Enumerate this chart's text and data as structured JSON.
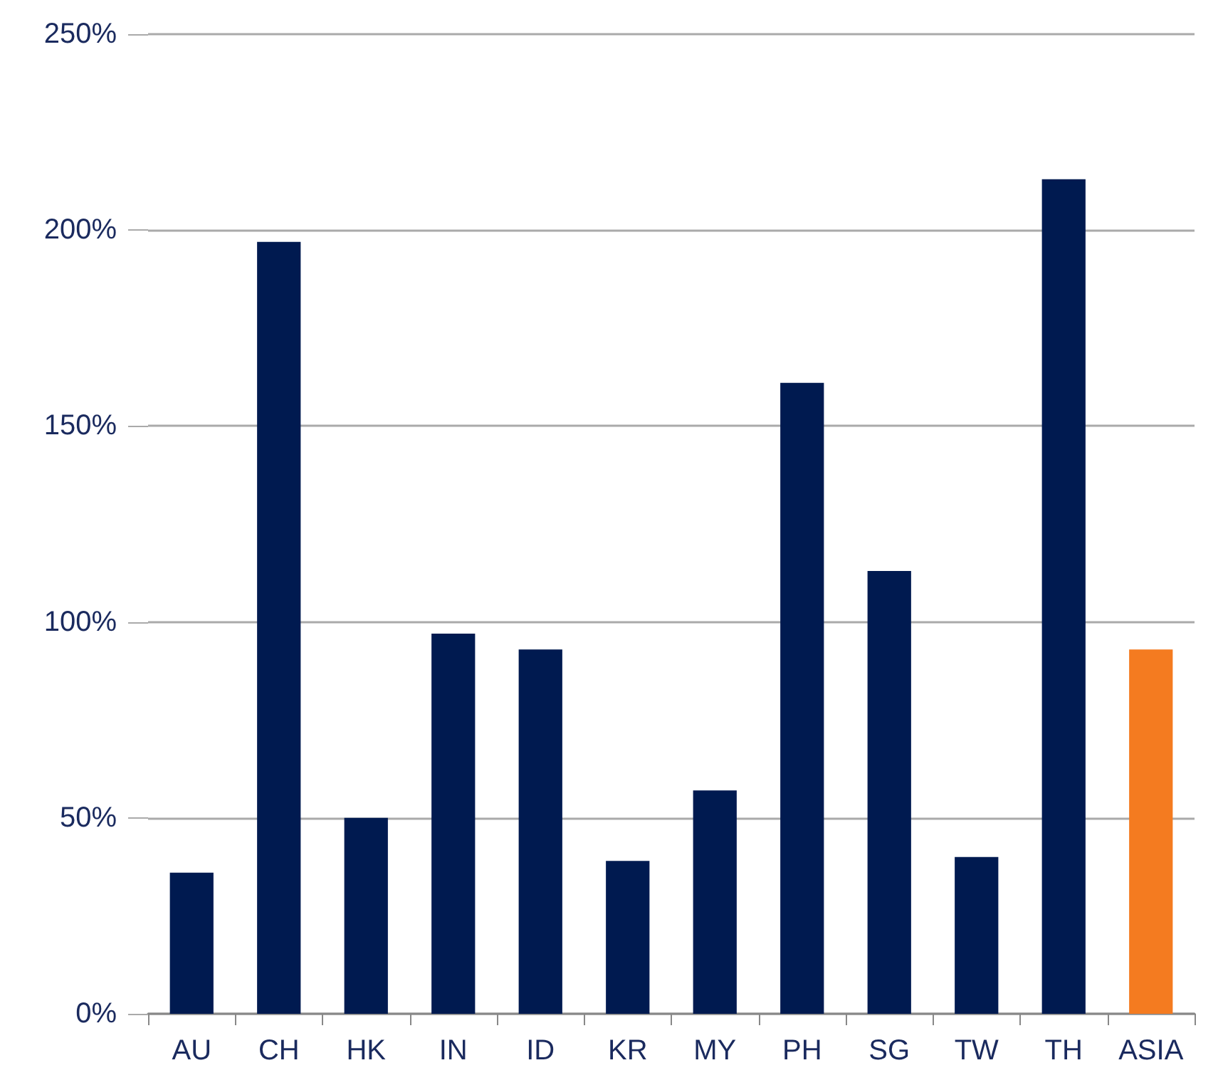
{
  "chart_data": {
    "type": "bar",
    "categories": [
      "AU",
      "CH",
      "HK",
      "IN",
      "ID",
      "KR",
      "MY",
      "PH",
      "SG",
      "TW",
      "TH",
      "ASIA"
    ],
    "values": [
      36,
      197,
      50,
      97,
      93,
      39,
      57,
      161,
      113,
      40,
      213,
      93
    ],
    "colors": [
      "#001a50",
      "#001a50",
      "#001a50",
      "#001a50",
      "#001a50",
      "#001a50",
      "#001a50",
      "#001a50",
      "#001a50",
      "#001a50",
      "#001a50",
      "#f47b20"
    ],
    "ylim": [
      0,
      250
    ],
    "yticks": [
      {
        "value": 0,
        "label": "0%"
      },
      {
        "value": 50,
        "label": "50%"
      },
      {
        "value": 100,
        "label": "100%"
      },
      {
        "value": 150,
        "label": "150%"
      },
      {
        "value": 200,
        "label": "200%"
      },
      {
        "value": 250,
        "label": "250%"
      }
    ],
    "grid": "y"
  }
}
